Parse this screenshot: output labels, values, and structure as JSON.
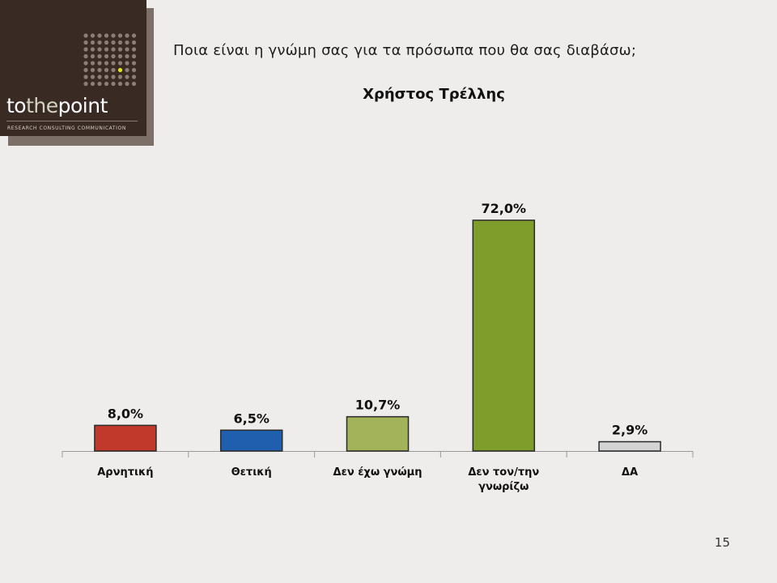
{
  "logo": {
    "text_left": "to",
    "text_mid": "the",
    "text_right": "point",
    "tagline": "RESEARCH  CONSULTING  COMMUNICATION"
  },
  "question": "Ποια είναι η γνώμη σας για τα πρόσωπα που θα σας διαβάσω;",
  "page_number": "15",
  "colors": {
    "accent_dot": "#e3e21e",
    "logo_bg": "#3a2a24"
  },
  "chart_data": {
    "type": "bar",
    "title": "Χρήστος Τρέλλης",
    "categories": [
      "Αρνητική",
      "Θετική",
      "Δεν έχω γνώμη",
      "Δεν τον/την γνωρίζω",
      "ΔΑ"
    ],
    "category_lines": [
      [
        "Αρνητική"
      ],
      [
        "Θετική"
      ],
      [
        "Δεν έχω γνώμη"
      ],
      [
        "Δεν τον/την",
        "γνωρίζω"
      ],
      [
        "ΔΑ"
      ]
    ],
    "values": [
      8.0,
      6.5,
      10.7,
      72.0,
      2.9
    ],
    "value_labels": [
      "8,0%",
      "6,5%",
      "10,7%",
      "72,0%",
      "2,9%"
    ],
    "colors": [
      "#c0392b",
      "#1f5fae",
      "#a3b35a",
      "#7f9d2b",
      "#d3d3d3"
    ],
    "ylim": [
      0,
      72
    ],
    "grid": false,
    "legend": "none"
  }
}
